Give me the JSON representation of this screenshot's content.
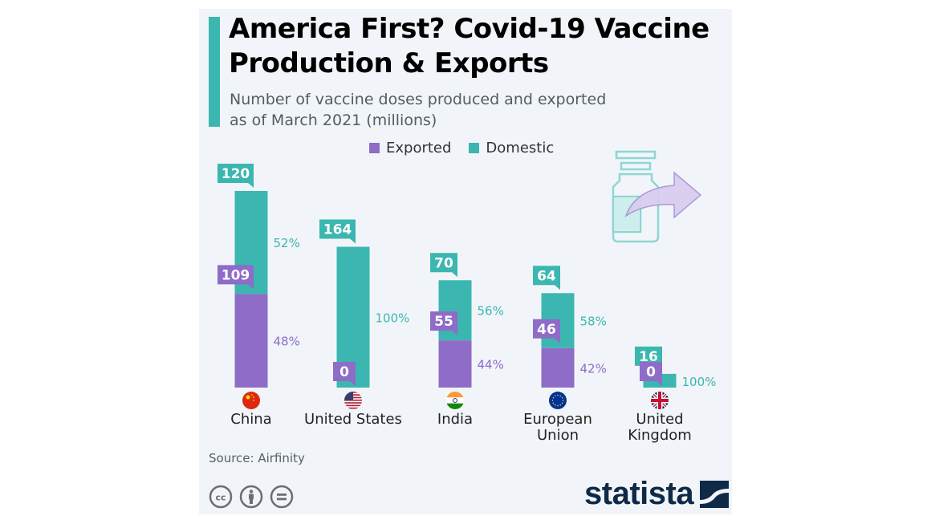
{
  "header": {
    "title": "America First? Covid-19 Vaccine Production & Exports",
    "subtitle_line1": "Number of vaccine doses produced and exported",
    "subtitle_line2": "as of March 2021 (millions)"
  },
  "legend": [
    {
      "label": "Exported",
      "color": "#8e6cc8"
    },
    {
      "label": "Domestic",
      "color": "#3cb6b0"
    }
  ],
  "colors": {
    "exported": "#8e6cc8",
    "domestic": "#3cb6b0",
    "accent": "#3cb6b0",
    "background": "#f1f5f9",
    "brand": "#0e2a47"
  },
  "chart_data": {
    "type": "bar",
    "stacked": true,
    "title": "America First? Covid-19 Vaccine Production & Exports",
    "subtitle": "Number of vaccine doses produced and exported as of March 2021 (millions)",
    "xlabel": "",
    "ylabel": "",
    "categories": [
      "China",
      "United States",
      "India",
      "European Union",
      "United Kingdom"
    ],
    "category_lines": [
      [
        "China"
      ],
      [
        "United States"
      ],
      [
        "India"
      ],
      [
        "European",
        "Union"
      ],
      [
        "United",
        "Kingdom"
      ]
    ],
    "flags": [
      "china-flag",
      "us-flag",
      "india-flag",
      "eu-flag",
      "uk-flag"
    ],
    "series": [
      {
        "name": "Exported",
        "values": [
          109,
          0,
          55,
          46,
          0
        ],
        "percent_labels": [
          "48%",
          "",
          "44%",
          "42%",
          ""
        ]
      },
      {
        "name": "Domestic",
        "values": [
          120,
          164,
          70,
          64,
          16
        ],
        "percent_labels": [
          "52%",
          "100%",
          "56%",
          "58%",
          "100%"
        ]
      }
    ],
    "value_labels": {
      "Exported": [
        "109",
        "0",
        "55",
        "46",
        "0"
      ],
      "Domestic": [
        "120",
        "164",
        "70",
        "64",
        "16"
      ]
    },
    "legend_position": "top-center",
    "grid": false,
    "ylim": [
      0,
      240
    ]
  },
  "footer": {
    "source": "Source: Airfinity",
    "brand": "statista",
    "license_icons": [
      "cc-icon",
      "attribution-icon",
      "no-derivatives-icon"
    ]
  }
}
